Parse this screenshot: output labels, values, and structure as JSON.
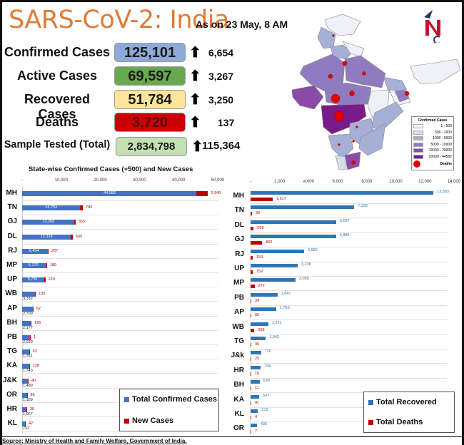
{
  "header": {
    "title": "SARS-CoV-2: India",
    "as_of": "As on 23 May, 8 AM"
  },
  "stats": [
    {
      "label": "Confirmed Cases",
      "value": "125,101",
      "delta": "6,654",
      "color": "#8eaadb"
    },
    {
      "label": "Active Cases",
      "value": "69,597",
      "delta": "3,267",
      "color": "#6aa84f"
    },
    {
      "label": "Recovered Cases",
      "value": "51,784",
      "delta": "3,250",
      "color": "#ffe599"
    },
    {
      "label": "Deaths",
      "value": "3,720",
      "delta": "137",
      "color": "#cc0000"
    },
    {
      "label": "Sample Tested (Total)",
      "value": "2,834,798",
      "delta": "115,364",
      "color": "#c5e0b3"
    }
  ],
  "map_legend": {
    "title": "Confirmed Cases",
    "items": [
      {
        "label": "1 - 500",
        "color": "#f3f5fb"
      },
      {
        "label": "500 - 1000",
        "color": "#d5dcec"
      },
      {
        "label": "1000 - 5000",
        "color": "#a6afd6"
      },
      {
        "label": "5000 - 10000",
        "color": "#8f7cc0"
      },
      {
        "label": "10000 - 20000",
        "color": "#8a4aa8"
      },
      {
        "label": "20000 - 44582",
        "color": "#7a1b8c"
      }
    ],
    "deaths_label": "Deaths"
  },
  "chart_data": [
    {
      "type": "bar",
      "orientation": "horizontal",
      "stacked": true,
      "title": "State-wise Confirmed Cases (+500) and New Cases",
      "xlim": [
        0,
        50000
      ],
      "xticks": [
        "-",
        "10,000",
        "20,000",
        "30,000",
        "40,000",
        "50,000"
      ],
      "categories": [
        "MH",
        "TN",
        "GJ",
        "DL",
        "RJ",
        "MP",
        "UP",
        "WB",
        "AP",
        "BH",
        "PB",
        "TG",
        "KA",
        "J&K",
        "OR",
        "HR",
        "KL"
      ],
      "series": [
        {
          "name": "Total Confirmed Cases",
          "color": "#4472c4",
          "values": [
            44582,
            14753,
            13268,
            12319,
            6494,
            6170,
            5735,
            3332,
            2709,
            2177,
            2029,
            1761,
            1743,
            1489,
            1189,
            1067,
            732
          ],
          "labels": [
            "44,582",
            "14,753",
            "13,268",
            "12,319",
            "6,494",
            "6,170",
            "5,735",
            "3,332",
            "2,709",
            "2,177",
            "2,029",
            "1,761",
            "1,743",
            "1,489",
            "1,189",
            "1,067",
            "732"
          ]
        },
        {
          "name": "New Cases",
          "color": "#c00000",
          "values": [
            2940,
            786,
            363,
            660,
            267,
            189,
            220,
            135,
            62,
            195,
            1,
            62,
            138,
            40,
            86,
            36,
            42
          ],
          "labels": [
            "2,940",
            "786",
            "363",
            "660",
            "267",
            "189",
            "220",
            "135",
            "62",
            "195",
            "1",
            "62",
            "138",
            "40",
            "86",
            "36",
            "42"
          ]
        }
      ]
    },
    {
      "type": "bar",
      "orientation": "horizontal",
      "stacked": false,
      "title": "",
      "xlim": [
        0,
        14000
      ],
      "xticks": [
        "-",
        "2,000",
        "4,000",
        "6,000",
        "8,000",
        "10,000",
        "12,000",
        "14,000"
      ],
      "categories": [
        "MH",
        "TN",
        "DL",
        "GJ",
        "RJ",
        "UP",
        "MP",
        "PB",
        "AP",
        "WB",
        "TG",
        "J&k",
        "HR",
        "BH",
        "KA",
        "KL",
        "OR"
      ],
      "series": [
        {
          "name": "Total Recovered",
          "color": "#2e75b6",
          "values": [
            12583,
            7128,
            5897,
            5880,
            3680,
            3238,
            3089,
            1847,
            1763,
            1221,
            1043,
            720,
            706,
            629,
            597,
            512,
            436
          ],
          "labels": [
            "12,583",
            "7,128",
            "5,897",
            "5,880",
            "3,680",
            "3,238",
            "3,089",
            "1,847",
            "1,763",
            "1,221",
            "1,043",
            "720",
            "706",
            "629",
            "597",
            "512",
            "436"
          ]
        },
        {
          "name": "Total Deaths",
          "color": "#c00000",
          "values": [
            1517,
            98,
            208,
            802,
            153,
            152,
            272,
            39,
            55,
            265,
            45,
            20,
            16,
            11,
            41,
            4,
            7
          ],
          "labels": [
            "1,517",
            "98",
            "208",
            "802",
            "153",
            "152",
            "272",
            "39",
            "55",
            "265",
            "45",
            "20",
            "16",
            "11",
            "41",
            "4",
            "7"
          ]
        }
      ]
    }
  ],
  "footer": {
    "source": "Source: Ministry of Health and Family Welfare, Government of India."
  }
}
